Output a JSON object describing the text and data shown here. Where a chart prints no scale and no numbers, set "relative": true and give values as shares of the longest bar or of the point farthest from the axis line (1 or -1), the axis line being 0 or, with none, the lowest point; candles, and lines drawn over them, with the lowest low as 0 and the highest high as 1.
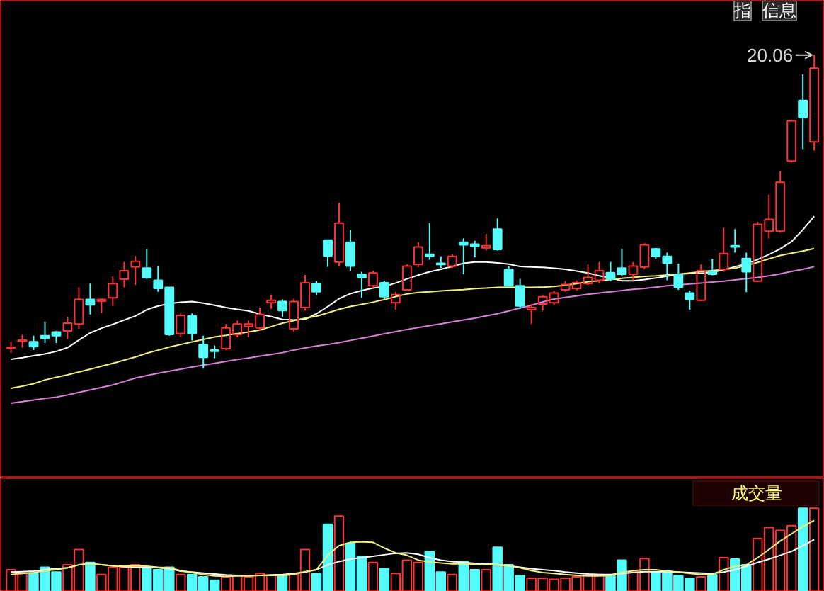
{
  "chart_data": [
    {
      "type": "candlestick",
      "categories": [
        null,
        null,
        null,
        null,
        null,
        null,
        null,
        null,
        null,
        null,
        null,
        null,
        null,
        null,
        null,
        null,
        null,
        null,
        null,
        null,
        null,
        null,
        null,
        null,
        null,
        null,
        null,
        null,
        null,
        null,
        null,
        null,
        null,
        null,
        null,
        null,
        null,
        null,
        null,
        null,
        null,
        null,
        null,
        null,
        null,
        null,
        null,
        null,
        null,
        null,
        null,
        null,
        null,
        null,
        null,
        null,
        null,
        null,
        null,
        null,
        null,
        null,
        null,
        null,
        null,
        null,
        null,
        null,
        null,
        null,
        null,
        null
      ],
      "relative": true,
      "ohlc": [
        [
          0.066,
          0.086,
          0.05,
          0.068
        ],
        [
          0.088,
          0.108,
          0.067,
          0.091
        ],
        [
          0.086,
          0.105,
          0.059,
          0.07
        ],
        [
          0.105,
          0.15,
          0.082,
          0.097
        ],
        [
          0.117,
          0.12,
          0.082,
          0.105
        ],
        [
          0.12,
          0.165,
          0.094,
          0.145
        ],
        [
          0.142,
          0.259,
          0.127,
          0.221
        ],
        [
          0.221,
          0.271,
          0.173,
          0.203
        ],
        [
          0.215,
          0.223,
          0.177,
          0.221
        ],
        [
          0.226,
          0.294,
          0.2,
          0.271
        ],
        [
          0.285,
          0.34,
          0.259,
          0.312
        ],
        [
          0.324,
          0.359,
          0.267,
          0.342
        ],
        [
          0.321,
          0.382,
          0.286,
          0.29
        ],
        [
          0.282,
          0.327,
          0.245,
          0.256
        ],
        [
          0.259,
          0.259,
          0.105,
          0.109
        ],
        [
          0.112,
          0.176,
          0.1,
          0.17
        ],
        [
          0.168,
          0.176,
          0.09,
          0.112
        ],
        [
          0.077,
          0.105,
          0,
          0.036
        ],
        [
          0.059,
          0.074,
          0.033,
          0.055
        ],
        [
          0.064,
          0.142,
          0.059,
          0.13
        ],
        [
          0.109,
          0.153,
          0.1,
          0.142
        ],
        [
          0.135,
          0.153,
          0.1,
          0.142
        ],
        [
          0.13,
          0.195,
          0.12,
          0.173
        ],
        [
          0.21,
          0.236,
          0.191,
          0.218
        ],
        [
          0.214,
          0.221,
          0.165,
          0.185
        ],
        [
          0.127,
          0.223,
          0.118,
          0.214
        ],
        [
          0.195,
          0.299,
          0.185,
          0.274
        ],
        [
          0.271,
          0.279,
          0.233,
          0.245
        ],
        [
          0.41,
          0.41,
          0.324,
          0.359
        ],
        [
          0.34,
          0.529,
          0.327,
          0.464
        ],
        [
          0.403,
          0.442,
          0.312,
          0.327
        ],
        [
          0.301,
          0.309,
          0.226,
          0.291
        ],
        [
          0.264,
          0.312,
          0.256,
          0.305
        ],
        [
          0.274,
          0.279,
          0.221,
          0.229
        ],
        [
          0.21,
          0.245,
          0.188,
          0.236
        ],
        [
          0.251,
          0.332,
          0.249,
          0.327
        ],
        [
          0.332,
          0.403,
          0.324,
          0.388
        ],
        [
          0.365,
          0.464,
          0.347,
          0.358
        ],
        [
          0.336,
          0.358,
          0.321,
          0.332
        ],
        [
          0.327,
          0.365,
          0.321,
          0.358
        ],
        [
          0.403,
          0.415,
          0.301,
          0.395
        ],
        [
          0.397,
          0.408,
          0.355,
          0.39
        ],
        [
          0.385,
          0.43,
          0.377,
          0.392
        ],
        [
          0.445,
          0.479,
          0.376,
          0.38
        ],
        [
          0.317,
          0.327,
          0.264,
          0.264
        ],
        [
          0.264,
          0.286,
          0.191,
          0.2
        ],
        [
          0.188,
          0.206,
          0.142,
          0.195
        ],
        [
          0.206,
          0.236,
          0.185,
          0.229
        ],
        [
          0.21,
          0.249,
          0.203,
          0.241
        ],
        [
          0.251,
          0.279,
          0.245,
          0.268
        ],
        [
          0.255,
          0.282,
          0.249,
          0.274
        ],
        [
          0.271,
          0.332,
          0.267,
          0.291
        ],
        [
          0.282,
          0.34,
          0.271,
          0.312
        ],
        [
          0.306,
          0.34,
          0.279,
          0.286
        ],
        [
          0.321,
          0.382,
          0.294,
          0.301
        ],
        [
          0.301,
          0.34,
          0.282,
          0.327
        ],
        [
          0.324,
          0.4,
          0.317,
          0.395
        ],
        [
          0.382,
          0.385,
          0.35,
          0.358
        ],
        [
          0.358,
          0.37,
          0.282,
          0.336
        ],
        [
          0.3,
          0.335,
          0.251,
          0.26
        ],
        [
          0.241,
          0.249,
          0.188,
          0.221
        ],
        [
          0.218,
          0.332,
          0.215,
          0.312
        ],
        [
          0.309,
          0.35,
          0.297,
          0.301
        ],
        [
          0.317,
          0.449,
          0.309,
          0.367
        ],
        [
          0.392,
          0.445,
          0.37,
          0.388
        ],
        [
          0.351,
          0.37,
          0.244,
          0.309
        ],
        [
          0.279,
          0.468,
          0.276,
          0.46
        ],
        [
          0.438,
          0.555,
          0.415,
          0.476
        ],
        [
          0.438,
          0.63,
          0.433,
          0.594
        ],
        [
          0.662,
          0.79,
          0.658,
          0.79
        ],
        [
          0.855,
          0.938,
          0.7,
          0.801
        ],
        [
          0.723,
          1.0,
          0.695,
          0.958
        ]
      ],
      "colors": [
        "#ff3232",
        "#ff3232",
        "#54fcfc",
        "#54fcfc",
        "#54fcfc",
        "#ff3232",
        "#ff3232",
        "#54fcfc",
        "#ff3232",
        "#ff3232",
        "#ff3232",
        "#ff3232",
        "#54fcfc",
        "#54fcfc",
        "#54fcfc",
        "#ff3232",
        "#54fcfc",
        "#54fcfc",
        "#54fcfc",
        "#ff3232",
        "#ff3232",
        "#ff3232",
        "#ff3232",
        "#ff3232",
        "#54fcfc",
        "#ff3232",
        "#ff3232",
        "#54fcfc",
        "#54fcfc",
        "#ff3232",
        "#54fcfc",
        "#54fcfc",
        "#ff3232",
        "#54fcfc",
        "#ff3232",
        "#ff3232",
        "#ff3232",
        "#54fcfc",
        "#54fcfc",
        "#ff3232",
        "#54fcfc",
        "#54fcfc",
        "#ff3232",
        "#54fcfc",
        "#54fcfc",
        "#54fcfc",
        "#ff3232",
        "#ff3232",
        "#ff3232",
        "#ff3232",
        "#ff3232",
        "#ff3232",
        "#ff3232",
        "#54fcfc",
        "#54fcfc",
        "#ff3232",
        "#ff3232",
        "#54fcfc",
        "#54fcfc",
        "#54fcfc",
        "#54fcfc",
        "#ff3232",
        "#54fcfc",
        "#ff3232",
        "#54fcfc",
        "#54fcfc",
        "#ff3232",
        "#ff3232",
        "#ff3232",
        "#ff3232",
        "#54fcfc",
        "#ff3232"
      ],
      "series": [
        {
          "type": "line",
          "color": "#ffffff",
          "values": [
            0.03,
            0.035,
            0.041,
            0.047,
            0.055,
            0.067,
            0.091,
            0.114,
            0.129,
            0.141,
            0.155,
            0.168,
            0.188,
            0.2,
            0.207,
            0.212,
            0.214,
            0.209,
            0.202,
            0.195,
            0.189,
            0.184,
            0.174,
            0.166,
            0.157,
            0.155,
            0.157,
            0.175,
            0.198,
            0.223,
            0.239,
            0.249,
            0.257,
            0.262,
            0.273,
            0.286,
            0.298,
            0.309,
            0.317,
            0.326,
            0.336,
            0.34,
            0.34,
            0.337,
            0.333,
            0.326,
            0.324,
            0.323,
            0.32,
            0.317,
            0.311,
            0.305,
            0.296,
            0.289,
            0.28,
            0.28,
            0.284,
            0.289,
            0.295,
            0.301,
            0.303,
            0.304,
            0.307,
            0.315,
            0.325,
            0.335,
            0.348,
            0.364,
            0.382,
            0.405,
            0.443,
            0.486
          ]
        },
        {
          "type": "line",
          "color": "#f0f080",
          "values": [
            -0.063,
            -0.056,
            -0.048,
            -0.036,
            -0.028,
            -0.02,
            -0.011,
            -0.002,
            0.008,
            0.017,
            0.027,
            0.037,
            0.049,
            0.059,
            0.069,
            0.077,
            0.085,
            0.093,
            0.101,
            0.106,
            0.112,
            0.117,
            0.123,
            0.134,
            0.145,
            0.153,
            0.161,
            0.167,
            0.178,
            0.189,
            0.198,
            0.205,
            0.212,
            0.22,
            0.23,
            0.238,
            0.243,
            0.245,
            0.248,
            0.25,
            0.252,
            0.255,
            0.257,
            0.259,
            0.26,
            0.259,
            0.259,
            0.26,
            0.262,
            0.266,
            0.271,
            0.277,
            0.28,
            0.284,
            0.288,
            0.291,
            0.294,
            0.296,
            0.299,
            0.301,
            0.305,
            0.309,
            0.313,
            0.316,
            0.32,
            0.329,
            0.339,
            0.35,
            0.361,
            0.368,
            0.375,
            0.383
          ]
        },
        {
          "type": "line",
          "color": "#d880d8",
          "values": [
            -0.11,
            -0.105,
            -0.1,
            -0.095,
            -0.091,
            -0.084,
            -0.076,
            -0.068,
            -0.06,
            -0.052,
            -0.041,
            -0.03,
            -0.022,
            -0.015,
            -0.008,
            -0.002,
            0.005,
            0.011,
            0.017,
            0.023,
            0.029,
            0.034,
            0.04,
            0.045,
            0.051,
            0.059,
            0.066,
            0.072,
            0.077,
            0.083,
            0.09,
            0.097,
            0.104,
            0.111,
            0.118,
            0.125,
            0.131,
            0.137,
            0.143,
            0.149,
            0.155,
            0.161,
            0.168,
            0.175,
            0.184,
            0.193,
            0.202,
            0.213,
            0.222,
            0.227,
            0.232,
            0.237,
            0.241,
            0.245,
            0.249,
            0.253,
            0.256,
            0.26,
            0.264,
            0.267,
            0.27,
            0.273,
            0.276,
            0.279,
            0.283,
            0.287,
            0.291,
            0.296,
            0.302,
            0.31,
            0.317,
            0.325
          ]
        }
      ],
      "annotations": [
        "20.06",
        "指",
        "信息"
      ]
    },
    {
      "type": "bar",
      "title": "成交量",
      "categories": [
        null,
        null,
        null,
        null,
        null,
        null,
        null,
        null,
        null,
        null,
        null,
        null,
        null,
        null,
        null,
        null,
        null,
        null,
        null,
        null,
        null,
        null,
        null,
        null,
        null,
        null,
        null,
        null,
        null,
        null,
        null,
        null,
        null,
        null,
        null,
        null,
        null,
        null,
        null,
        null,
        null,
        null,
        null,
        null,
        null,
        null,
        null,
        null,
        null,
        null,
        null,
        null,
        null,
        null,
        null,
        null,
        null,
        null,
        null,
        null,
        null,
        null,
        null,
        null,
        null,
        null,
        null,
        null,
        null,
        null,
        null,
        null
      ],
      "relative": true,
      "series": [
        {
          "colors": [
            "#ff3232",
            "#ff3232",
            "#54fcfc",
            "#54fcfc",
            "#54fcfc",
            "#ff3232",
            "#ff3232",
            "#54fcfc",
            "#ff3232",
            "#ff3232",
            "#ff3232",
            "#ff3232",
            "#54fcfc",
            "#54fcfc",
            "#54fcfc",
            "#ff3232",
            "#54fcfc",
            "#54fcfc",
            "#54fcfc",
            "#ff3232",
            "#ff3232",
            "#ff3232",
            "#ff3232",
            "#ff3232",
            "#54fcfc",
            "#ff3232",
            "#ff3232",
            "#54fcfc",
            "#54fcfc",
            "#ff3232",
            "#54fcfc",
            "#54fcfc",
            "#ff3232",
            "#54fcfc",
            "#ff3232",
            "#ff3232",
            "#ff3232",
            "#54fcfc",
            "#54fcfc",
            "#ff3232",
            "#54fcfc",
            "#54fcfc",
            "#ff3232",
            "#54fcfc",
            "#54fcfc",
            "#54fcfc",
            "#ff3232",
            "#ff3232",
            "#ff3232",
            "#ff3232",
            "#ff3232",
            "#ff3232",
            "#ff3232",
            "#54fcfc",
            "#54fcfc",
            "#ff3232",
            "#ff3232",
            "#54fcfc",
            "#54fcfc",
            "#54fcfc",
            "#54fcfc",
            "#ff3232",
            "#54fcfc",
            "#ff3232",
            "#54fcfc",
            "#54fcfc",
            "#ff3232",
            "#ff3232",
            "#ff3232",
            "#ff3232",
            "#54fcfc",
            "#ff3232"
          ],
          "values": [
            0.264,
            0.224,
            0.218,
            0.293,
            0.236,
            0.322,
            0.506,
            0.351,
            0.207,
            0.293,
            0.293,
            0.322,
            0.293,
            0.264,
            0.293,
            0.207,
            0.207,
            0.178,
            0.138,
            0.178,
            0.195,
            0.178,
            0.218,
            0.195,
            0.195,
            0.207,
            0.506,
            0.218,
            0.81,
            0.908,
            0.58,
            0.425,
            0.351,
            0.276,
            0.218,
            0.379,
            0.351,
            0.483,
            0.236,
            0.207,
            0.362,
            0.264,
            0.264,
            0.534,
            0.322,
            0.195,
            0.161,
            0.161,
            0.149,
            0.161,
            0.178,
            0.195,
            0.207,
            0.195,
            0.379,
            0.236,
            0.397,
            0.236,
            0.247,
            0.195,
            0.161,
            0.178,
            0.207,
            0.408,
            0.391,
            0.322,
            0.638,
            0.77,
            0.736,
            0.793,
            1.0,
            1.0
          ]
        },
        {
          "type": "line",
          "color": "#ffffff",
          "values": [
            0.236,
            0.241,
            0.247,
            0.264,
            0.276,
            0.287,
            0.322,
            0.333,
            0.322,
            0.31,
            0.299,
            0.293,
            0.293,
            0.287,
            0.276,
            0.247,
            0.236,
            0.224,
            0.213,
            0.201,
            0.195,
            0.195,
            0.195,
            0.201,
            0.207,
            0.218,
            0.236,
            0.264,
            0.322,
            0.362,
            0.391,
            0.408,
            0.425,
            0.443,
            0.46,
            0.466,
            0.448,
            0.408,
            0.379,
            0.362,
            0.351,
            0.339,
            0.333,
            0.328,
            0.31,
            0.293,
            0.276,
            0.264,
            0.253,
            0.236,
            0.224,
            0.213,
            0.207,
            0.207,
            0.218,
            0.23,
            0.241,
            0.241,
            0.241,
            0.236,
            0.23,
            0.224,
            0.218,
            0.236,
            0.264,
            0.305,
            0.351,
            0.391,
            0.437,
            0.483,
            0.552,
            0.626
          ]
        },
        {
          "type": "line",
          "color": "#f0f080",
          "values": [
            0.207,
            0.218,
            0.23,
            0.253,
            0.264,
            0.287,
            0.322,
            0.333,
            0.322,
            0.31,
            0.305,
            0.31,
            0.305,
            0.293,
            0.287,
            0.253,
            0.23,
            0.207,
            0.19,
            0.184,
            0.19,
            0.19,
            0.195,
            0.195,
            0.195,
            0.207,
            0.241,
            0.264,
            0.437,
            0.552,
            0.592,
            0.598,
            0.592,
            0.523,
            0.466,
            0.437,
            0.379,
            0.356,
            0.345,
            0.333,
            0.333,
            0.328,
            0.322,
            0.322,
            0.31,
            0.287,
            0.253,
            0.23,
            0.218,
            0.207,
            0.195,
            0.19,
            0.19,
            0.195,
            0.23,
            0.253,
            0.264,
            0.264,
            0.247,
            0.236,
            0.218,
            0.207,
            0.207,
            0.264,
            0.305,
            0.322,
            0.408,
            0.506,
            0.609,
            0.695,
            0.782,
            0.856
          ]
        }
      ]
    }
  ]
}
